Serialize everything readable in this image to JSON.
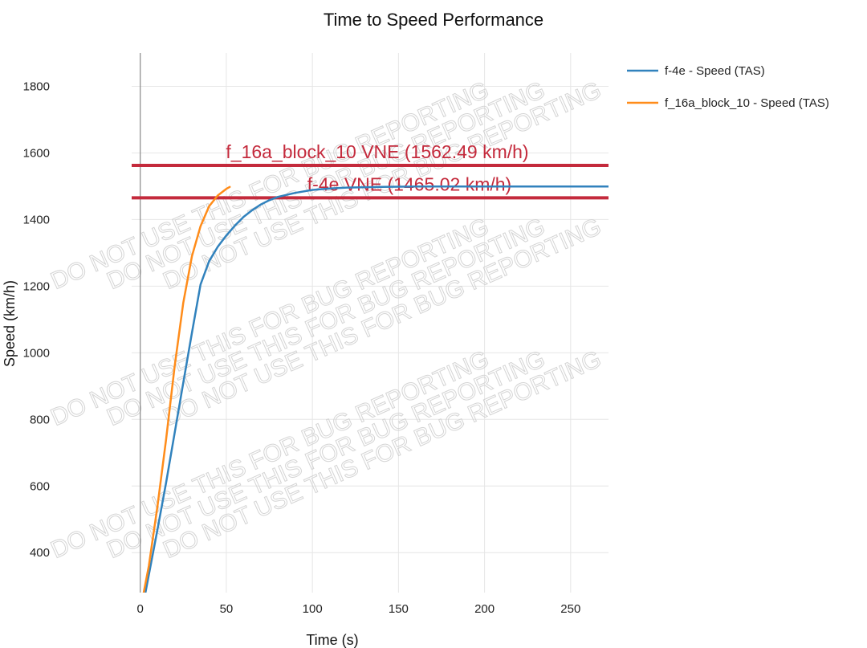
{
  "chart_data": {
    "type": "line",
    "title": "Time to Speed Performance",
    "xlabel": "Time (s)",
    "ylabel": "Speed (km/h)",
    "xlim": [
      -5,
      272
    ],
    "ylim": [
      280,
      1900
    ],
    "xticks": [
      0,
      50,
      100,
      150,
      200,
      250
    ],
    "yticks": [
      400,
      600,
      800,
      1000,
      1200,
      1400,
      1600,
      1800
    ],
    "grid": true,
    "legend_position": "top-right",
    "series": [
      {
        "name": "f-4e - Speed (TAS)",
        "color": "#3182bd",
        "x": [
          3,
          10,
          15,
          20,
          25,
          30,
          35,
          40,
          45,
          50,
          55,
          60,
          65,
          70,
          75,
          80,
          90,
          100,
          110,
          120,
          140,
          160,
          200,
          250,
          272
        ],
        "y": [
          280,
          470,
          610,
          760,
          910,
          1060,
          1205,
          1275,
          1318,
          1352,
          1382,
          1408,
          1428,
          1445,
          1458,
          1468,
          1480,
          1489,
          1493,
          1496,
          1498,
          1499,
          1499,
          1499,
          1499
        ]
      },
      {
        "name": "f_16a_block_10 - Speed (TAS)",
        "color": "#ff8c1a",
        "x": [
          2,
          5,
          10,
          15,
          20,
          25,
          30,
          35,
          40,
          45,
          50,
          52
        ],
        "y": [
          280,
          360,
          540,
          740,
          960,
          1150,
          1290,
          1380,
          1440,
          1472,
          1492,
          1498
        ]
      }
    ],
    "reference_lines": [
      {
        "label": "f_16a_block_10 VNE (1562.49 km/h)",
        "value": 1562.49,
        "color": "#c42a3c"
      },
      {
        "label": "f-4e VNE (1465.02 km/h)",
        "value": 1465.02,
        "color": "#c42a3c"
      }
    ],
    "watermark": "DO NOT USE THIS FOR BUG REPORTING"
  }
}
